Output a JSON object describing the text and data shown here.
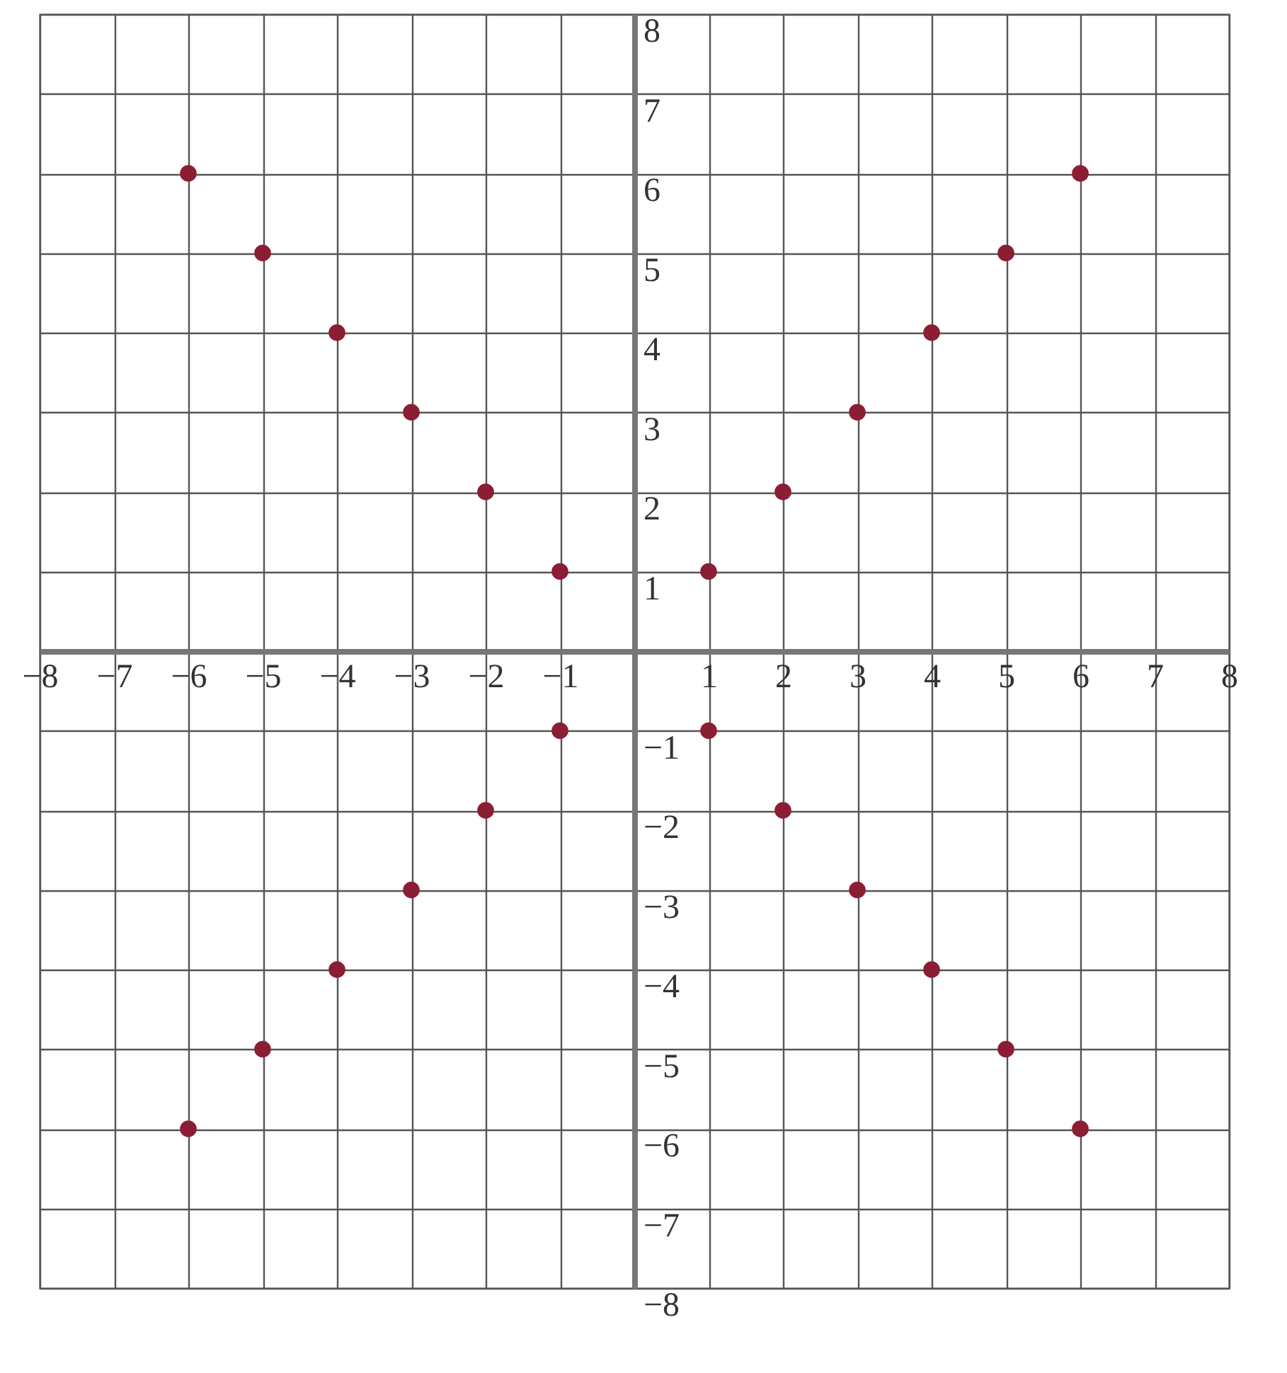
{
  "chart_data": {
    "type": "scatter",
    "x": [
      -6,
      -5,
      -4,
      -3,
      -2,
      -1,
      1,
      2,
      3,
      4,
      5,
      6,
      -1,
      -2,
      -3,
      -4,
      -5,
      -6,
      1,
      2,
      3,
      4,
      5,
      6
    ],
    "series": [
      {
        "color": "#8b1e32",
        "values": [
          6,
          5,
          4,
          3,
          2,
          1,
          1,
          2,
          3,
          4,
          5,
          6,
          -1,
          -2,
          -3,
          -4,
          -5,
          -6,
          -1,
          -2,
          -3,
          -4,
          -5,
          -6
        ]
      }
    ],
    "xlim": [
      -8,
      8
    ],
    "ylim": [
      -8,
      8
    ],
    "xticks": [
      -8,
      -7,
      -6,
      -5,
      -4,
      -3,
      -2,
      -1,
      1,
      2,
      3,
      4,
      5,
      6,
      7,
      8
    ],
    "yticks": [
      -8,
      -7,
      -6,
      -5,
      -4,
      -3,
      -2,
      -1,
      1,
      2,
      3,
      4,
      5,
      6,
      7,
      8
    ],
    "grid": true,
    "marker": "circle"
  }
}
